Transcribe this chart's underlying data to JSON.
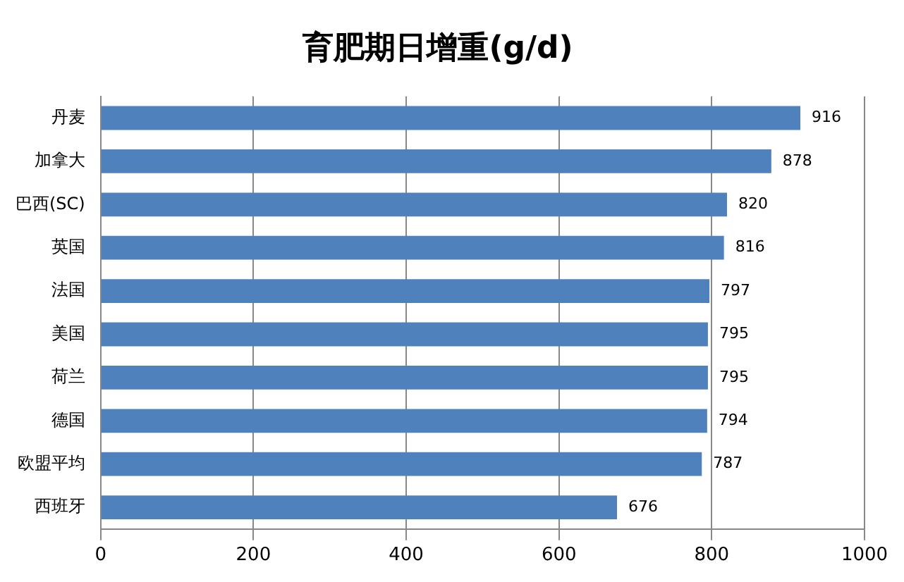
{
  "chart_data": {
    "type": "bar",
    "orientation": "horizontal",
    "title": "育肥期日增重(g/d)",
    "categories": [
      "丹麦",
      "加拿大",
      "巴西(SC)",
      "英国",
      "法国",
      "美国",
      "荷兰",
      "德国",
      "欧盟平均",
      "西班牙"
    ],
    "values": [
      916,
      878,
      820,
      816,
      797,
      795,
      795,
      794,
      787,
      676
    ],
    "color": "#4f81bd",
    "xlim": [
      0,
      1000
    ],
    "xticks": [
      0,
      200,
      400,
      600,
      800,
      1000
    ],
    "grid": "x",
    "data_labels": true,
    "legend": false
  }
}
